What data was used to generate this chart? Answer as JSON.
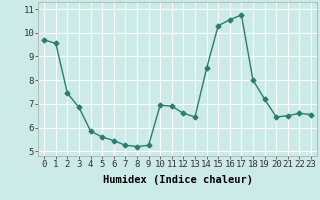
{
  "x": [
    0,
    1,
    2,
    3,
    4,
    5,
    6,
    7,
    8,
    9,
    10,
    11,
    12,
    13,
    14,
    15,
    16,
    17,
    18,
    19,
    20,
    21,
    22,
    23
  ],
  "y": [
    9.7,
    9.55,
    7.45,
    6.85,
    5.85,
    5.6,
    5.45,
    5.25,
    5.2,
    5.25,
    6.95,
    6.9,
    6.6,
    6.45,
    8.5,
    10.3,
    10.55,
    10.75,
    8.0,
    7.2,
    6.45,
    6.5,
    6.6,
    6.55
  ],
  "xlabel": "Humidex (Indice chaleur)",
  "xlim": [
    -0.5,
    23.5
  ],
  "ylim": [
    4.8,
    11.3
  ],
  "yticks": [
    5,
    6,
    7,
    8,
    9,
    10,
    11
  ],
  "xticks": [
    0,
    1,
    2,
    3,
    4,
    5,
    6,
    7,
    8,
    9,
    10,
    11,
    12,
    13,
    14,
    15,
    16,
    17,
    18,
    19,
    20,
    21,
    22,
    23
  ],
  "line_color": "#2d7d6e",
  "marker": "D",
  "marker_size": 2.5,
  "bg_color": "#cceae7",
  "grid_color": "#ffffff",
  "tick_label_fontsize": 6.5,
  "xlabel_fontsize": 7.5,
  "line_width": 1.0
}
